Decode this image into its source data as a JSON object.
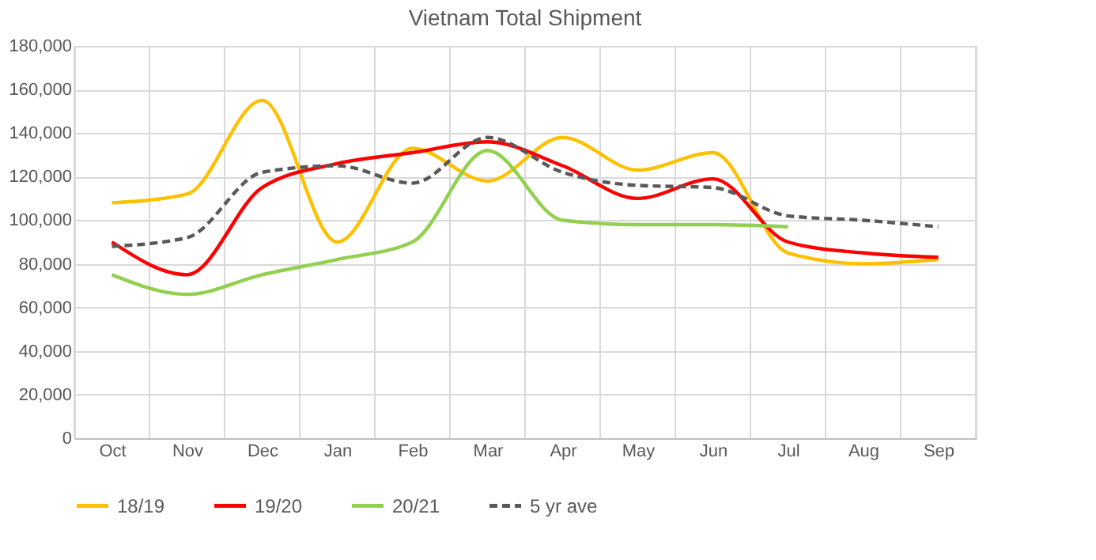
{
  "chart_data": {
    "type": "line",
    "title": "Vietnam Total Shipment",
    "categories": [
      "Oct",
      "Nov",
      "Dec",
      "Jan",
      "Feb",
      "Mar",
      "Apr",
      "May",
      "Jun",
      "Jul",
      "Aug",
      "Sep"
    ],
    "series": [
      {
        "name": "18/19",
        "color": "#ffc000",
        "line_style": "solid",
        "values": [
          108000,
          112000,
          155000,
          90000,
          133000,
          118000,
          138000,
          123000,
          131000,
          85000,
          80000,
          82000
        ]
      },
      {
        "name": "19/20",
        "color": "#ff0000",
        "line_style": "solid",
        "values": [
          90000,
          75000,
          115000,
          126000,
          131000,
          136000,
          125000,
          110000,
          119000,
          90000,
          85000,
          83000
        ]
      },
      {
        "name": "20/21",
        "color": "#92d050",
        "line_style": "solid",
        "values": [
          75000,
          66000,
          75000,
          82000,
          90000,
          132000,
          100000,
          98000,
          98000,
          97000,
          null,
          null
        ]
      },
      {
        "name": "5 yr ave",
        "color": "#595959",
        "line_style": "dashed",
        "values": [
          88000,
          92000,
          122000,
          125000,
          117000,
          138000,
          122000,
          116000,
          115000,
          102000,
          100000,
          97000
        ]
      }
    ],
    "ylim": [
      0,
      180000
    ],
    "yticks": [
      0,
      {
        "value": 20000,
        "label": "20,000"
      },
      {
        "value": 40000,
        "label": "40,000"
      },
      {
        "value": 60000,
        "label": "60,000"
      },
      {
        "value": 80000,
        "label": "80,000"
      },
      {
        "value": 100000,
        "label": "100,000"
      },
      {
        "value": 120000,
        "label": "120,000"
      },
      {
        "value": 140000,
        "label": "140,000"
      },
      {
        "value": 160000,
        "label": "160,000"
      },
      {
        "value": 180000,
        "label": "180,000"
      }
    ],
    "grid": true,
    "legend": "bottom",
    "marker": "none"
  }
}
